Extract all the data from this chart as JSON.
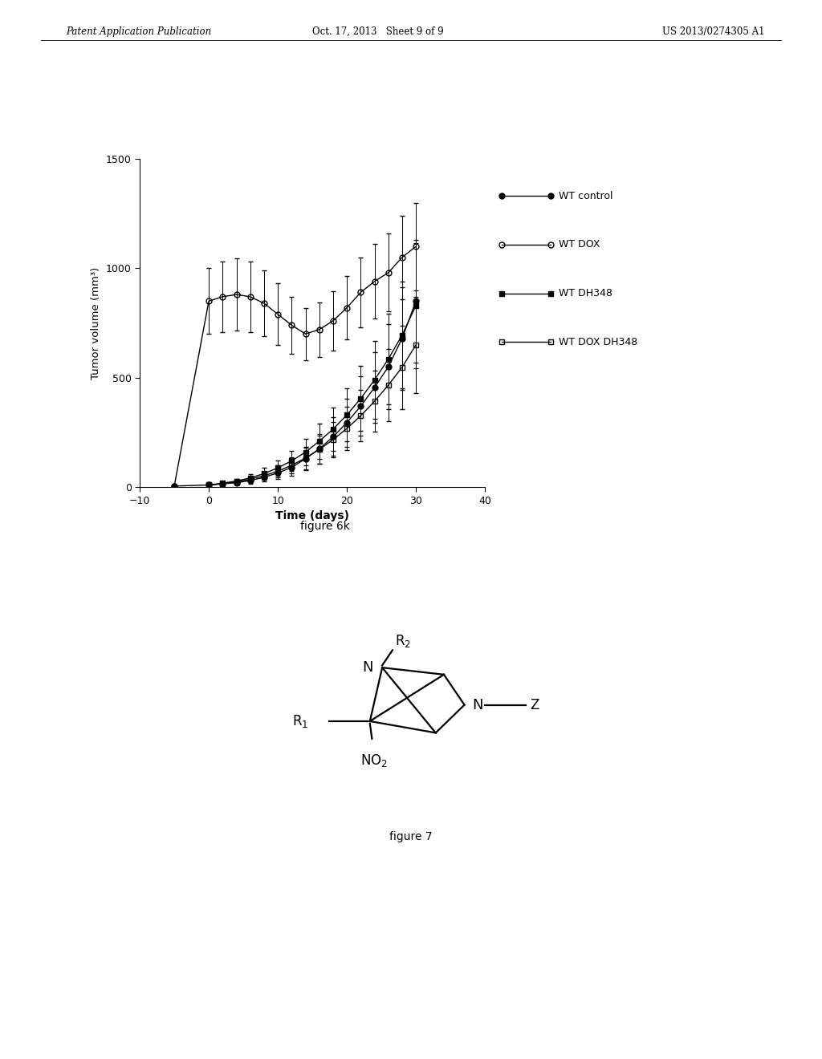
{
  "header_left": "Patent Application Publication",
  "header_center": "Oct. 17, 2013   Sheet 9 of 9",
  "header_right": "US 2013/0274305 A1",
  "fig6k_caption": "figure 6k",
  "fig7_caption": "figure 7",
  "xlabel": "Time (days)",
  "ylabel": "Tumor volume (mm³)",
  "xlim": [
    -10,
    40
  ],
  "ylim": [
    0,
    1500
  ],
  "xticks": [
    -10,
    0,
    10,
    20,
    30,
    40
  ],
  "yticks": [
    0,
    500,
    1000,
    1500
  ],
  "series": [
    {
      "label": "WT control",
      "marker": "o",
      "fillstyle": "full",
      "x": [
        -5,
        0,
        2,
        4,
        6,
        8,
        10,
        12,
        14,
        16,
        18,
        20,
        22,
        24,
        26,
        28,
        30
      ],
      "y": [
        5,
        10,
        15,
        20,
        30,
        45,
        65,
        90,
        130,
        175,
        230,
        295,
        370,
        455,
        550,
        680,
        850
      ],
      "yerr": [
        3,
        5,
        7,
        10,
        15,
        20,
        28,
        38,
        52,
        68,
        88,
        110,
        135,
        162,
        195,
        235,
        280
      ]
    },
    {
      "label": "WT DOX",
      "marker": "o",
      "fillstyle": "none",
      "x": [
        -5,
        0,
        2,
        4,
        6,
        8,
        10,
        12,
        14,
        16,
        18,
        20,
        22,
        24,
        26,
        28,
        30
      ],
      "y": [
        5,
        850,
        870,
        880,
        870,
        840,
        790,
        740,
        700,
        720,
        760,
        820,
        890,
        940,
        980,
        1050,
        1100
      ],
      "yerr": [
        3,
        150,
        160,
        165,
        160,
        150,
        140,
        130,
        120,
        125,
        135,
        145,
        160,
        170,
        178,
        190,
        200
      ]
    },
    {
      "label": "WT DH348",
      "marker": "s",
      "fillstyle": "full",
      "x": [
        0,
        2,
        4,
        6,
        8,
        10,
        12,
        14,
        16,
        18,
        20,
        22,
        24,
        26,
        28,
        30
      ],
      "y": [
        10,
        18,
        28,
        42,
        62,
        88,
        120,
        160,
        210,
        265,
        330,
        405,
        490,
        585,
        695,
        830
      ],
      "yerr": [
        4,
        7,
        11,
        17,
        25,
        35,
        47,
        62,
        80,
        100,
        122,
        148,
        177,
        208,
        244,
        285
      ]
    },
    {
      "label": "WT DOX DH348",
      "marker": "s",
      "fillstyle": "none",
      "x": [
        0,
        2,
        4,
        6,
        8,
        10,
        12,
        14,
        16,
        18,
        20,
        22,
        24,
        26,
        28,
        30
      ],
      "y": [
        10,
        16,
        24,
        36,
        52,
        73,
        100,
        133,
        172,
        217,
        268,
        326,
        392,
        466,
        548,
        650
      ],
      "yerr": [
        4,
        6,
        9,
        14,
        20,
        28,
        38,
        50,
        64,
        80,
        98,
        118,
        140,
        164,
        190,
        220
      ]
    }
  ],
  "legend_labels": [
    "WT control",
    "WT DOX",
    "WT DH348",
    "WT DOX DH348"
  ],
  "background_color": "#ffffff"
}
